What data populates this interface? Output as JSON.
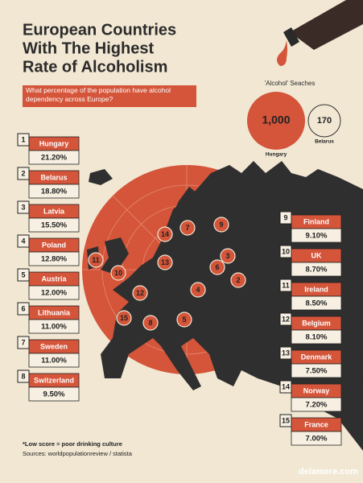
{
  "header": {
    "title_lines": [
      "European Countries",
      "With The Highest",
      "Rate of Alcoholism"
    ],
    "question": "What percentage of the population have alcohol dependency across Europe?"
  },
  "searches": {
    "title": "'Alcohol' Seaches",
    "items": [
      {
        "value": "1,000",
        "label": "Hungary"
      },
      {
        "value": "170",
        "label": "Belarus"
      }
    ]
  },
  "ranks": [
    {
      "rank": "1",
      "country": "Hungary",
      "value": "21.20%"
    },
    {
      "rank": "2",
      "country": "Belarus",
      "value": "18.80%"
    },
    {
      "rank": "3",
      "country": "Latvia",
      "value": "15.50%"
    },
    {
      "rank": "4",
      "country": "Poland",
      "value": "12.80%"
    },
    {
      "rank": "5",
      "country": "Austria",
      "value": "12.00%"
    },
    {
      "rank": "6",
      "country": "Lithuania",
      "value": "11.00%"
    },
    {
      "rank": "7",
      "country": "Sweden",
      "value": "11.00%"
    },
    {
      "rank": "8",
      "country": "Switzerland",
      "value": "9.50%"
    },
    {
      "rank": "9",
      "country": "Finland",
      "value": "9.10%"
    },
    {
      "rank": "10",
      "country": "UK",
      "value": "8.70%"
    },
    {
      "rank": "11",
      "country": "Ireland",
      "value": "8.50%"
    },
    {
      "rank": "12",
      "country": "Belgium",
      "value": "8.10%"
    },
    {
      "rank": "13",
      "country": "Denmark",
      "value": "7.50%"
    },
    {
      "rank": "14",
      "country": "Norway",
      "value": "7.20%"
    },
    {
      "rank": "15",
      "country": "France",
      "value": "7.00%"
    }
  ],
  "footer": {
    "note": "*Low score = poor drinking culture",
    "sources": "Sources: worldpopulationreview / statista",
    "watermark": "delamere.com"
  }
}
